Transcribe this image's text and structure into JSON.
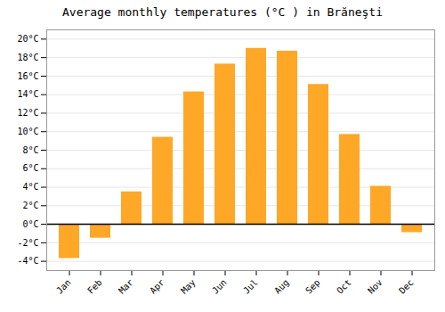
{
  "chart_data": {
    "type": "bar",
    "title": "Average monthly temperatures (°C ) in Brăneşti",
    "categories": [
      "Jan",
      "Feb",
      "Mar",
      "Apr",
      "May",
      "Jun",
      "Jul",
      "Aug",
      "Sep",
      "Oct",
      "Nov",
      "Dec"
    ],
    "values": [
      -3.7,
      -1.5,
      3.5,
      9.4,
      14.3,
      17.3,
      19.0,
      18.7,
      15.1,
      9.7,
      4.1,
      -0.9
    ],
    "color": "#FFA726",
    "ylim": [
      -5,
      21
    ],
    "yticks": [
      {
        "value": -4,
        "label": "-4°C"
      },
      {
        "value": -2,
        "label": "-2°C"
      },
      {
        "value": 0,
        "label": "0°C"
      },
      {
        "value": 2,
        "label": "2°C"
      },
      {
        "value": 4,
        "label": "4°C"
      },
      {
        "value": 6,
        "label": "6°C"
      },
      {
        "value": 8,
        "label": "8°C"
      },
      {
        "value": 10,
        "label": "10°C"
      },
      {
        "value": 12,
        "label": "12°C"
      },
      {
        "value": 14,
        "label": "14°C"
      },
      {
        "value": 16,
        "label": "16°C"
      },
      {
        "value": 18,
        "label": "18°C"
      },
      {
        "value": 20,
        "label": "20°C"
      }
    ],
    "grid": true
  }
}
